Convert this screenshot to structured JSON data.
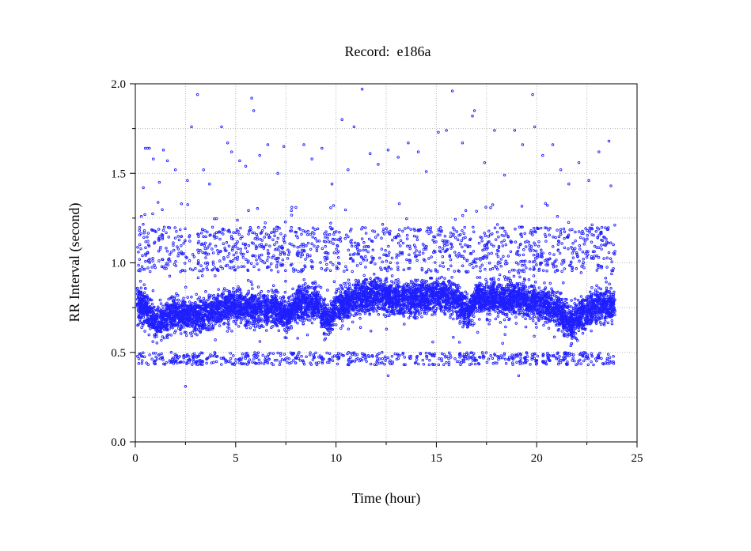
{
  "chart_data": {
    "type": "scatter",
    "title": "Record:  e186a",
    "xlabel": "Time (hour)",
    "ylabel": "RR Interval (second)",
    "xlim": [
      0,
      25
    ],
    "ylim": [
      0,
      2
    ],
    "xticks": [
      0,
      5,
      10,
      15,
      20,
      25
    ],
    "xtick_labels": [
      "0",
      "5",
      "10",
      "15",
      "20",
      "25"
    ],
    "yticks": [
      0,
      0.5,
      1,
      1.5,
      2
    ],
    "ytick_labels": [
      "0.0",
      "0.5",
      "1.0",
      "1.5",
      "2.0"
    ],
    "grid": true,
    "series": [
      {
        "color": "#1f1fff",
        "marker": "circle",
        "x_range": [
          0.1,
          23.9
        ],
        "baseline_profile": {
          "x": [
            0.1,
            0.5,
            1.0,
            2.0,
            3.0,
            4.0,
            5.0,
            6.0,
            7.0,
            7.6,
            8.0,
            9.0,
            9.6,
            10.0,
            11.0,
            12.0,
            13.0,
            14.0,
            15.0,
            16.0,
            16.6,
            17.0,
            18.0,
            19.0,
            20.0,
            21.0,
            21.7,
            22.0,
            23.0,
            23.9
          ],
          "y": [
            0.78,
            0.76,
            0.66,
            0.72,
            0.7,
            0.74,
            0.76,
            0.74,
            0.74,
            0.7,
            0.76,
            0.78,
            0.66,
            0.76,
            0.8,
            0.82,
            0.8,
            0.8,
            0.82,
            0.8,
            0.72,
            0.8,
            0.8,
            0.8,
            0.78,
            0.74,
            0.66,
            0.7,
            0.76,
            0.76
          ]
        },
        "band_spread": 0.09,
        "upper_cluster_y": [
          0.95,
          1.2
        ],
        "lower_cluster_y": [
          0.43,
          0.5
        ],
        "outliers": [
          {
            "x": 0.3,
            "y": 1.26
          },
          {
            "x": 0.4,
            "y": 1.42
          },
          {
            "x": 0.5,
            "y": 1.64
          },
          {
            "x": 0.6,
            "y": 1.64
          },
          {
            "x": 0.7,
            "y": 1.64
          },
          {
            "x": 0.9,
            "y": 1.58
          },
          {
            "x": 1.2,
            "y": 1.45
          },
          {
            "x": 1.4,
            "y": 1.63
          },
          {
            "x": 1.6,
            "y": 1.57
          },
          {
            "x": 2.0,
            "y": 1.52
          },
          {
            "x": 2.3,
            "y": 1.33
          },
          {
            "x": 2.6,
            "y": 1.46
          },
          {
            "x": 2.8,
            "y": 1.76
          },
          {
            "x": 3.1,
            "y": 1.94
          },
          {
            "x": 3.4,
            "y": 1.52
          },
          {
            "x": 3.7,
            "y": 1.44
          },
          {
            "x": 4.3,
            "y": 1.76
          },
          {
            "x": 4.6,
            "y": 1.67
          },
          {
            "x": 4.8,
            "y": 1.62
          },
          {
            "x": 5.2,
            "y": 1.57
          },
          {
            "x": 5.5,
            "y": 1.54
          },
          {
            "x": 5.8,
            "y": 1.92
          },
          {
            "x": 5.9,
            "y": 1.85
          },
          {
            "x": 6.2,
            "y": 1.6
          },
          {
            "x": 6.6,
            "y": 1.66
          },
          {
            "x": 7.1,
            "y": 1.5
          },
          {
            "x": 7.4,
            "y": 1.65
          },
          {
            "x": 7.8,
            "y": 1.31
          },
          {
            "x": 8.4,
            "y": 1.66
          },
          {
            "x": 8.8,
            "y": 1.58
          },
          {
            "x": 9.3,
            "y": 1.64
          },
          {
            "x": 9.8,
            "y": 1.44
          },
          {
            "x": 10.3,
            "y": 1.8
          },
          {
            "x": 10.6,
            "y": 1.52
          },
          {
            "x": 10.9,
            "y": 1.76
          },
          {
            "x": 11.3,
            "y": 1.97
          },
          {
            "x": 11.7,
            "y": 1.61
          },
          {
            "x": 12.1,
            "y": 1.55
          },
          {
            "x": 12.6,
            "y": 1.63
          },
          {
            "x": 13.1,
            "y": 1.59
          },
          {
            "x": 13.6,
            "y": 1.67
          },
          {
            "x": 14.1,
            "y": 1.62
          },
          {
            "x": 14.5,
            "y": 1.51
          },
          {
            "x": 15.1,
            "y": 1.73
          },
          {
            "x": 15.5,
            "y": 1.74
          },
          {
            "x": 15.8,
            "y": 1.96
          },
          {
            "x": 16.3,
            "y": 1.67
          },
          {
            "x": 16.8,
            "y": 1.82
          },
          {
            "x": 16.9,
            "y": 1.85
          },
          {
            "x": 17.4,
            "y": 1.56
          },
          {
            "x": 17.9,
            "y": 1.74
          },
          {
            "x": 18.4,
            "y": 1.49
          },
          {
            "x": 18.9,
            "y": 1.74
          },
          {
            "x": 19.3,
            "y": 1.66
          },
          {
            "x": 19.8,
            "y": 1.94
          },
          {
            "x": 19.9,
            "y": 1.76
          },
          {
            "x": 20.3,
            "y": 1.6
          },
          {
            "x": 20.8,
            "y": 1.66
          },
          {
            "x": 21.2,
            "y": 1.52
          },
          {
            "x": 21.6,
            "y": 1.44
          },
          {
            "x": 22.1,
            "y": 1.56
          },
          {
            "x": 22.6,
            "y": 1.46
          },
          {
            "x": 23.1,
            "y": 1.62
          },
          {
            "x": 23.6,
            "y": 1.68
          },
          {
            "x": 23.7,
            "y": 1.43
          },
          {
            "x": 2.5,
            "y": 0.31
          },
          {
            "x": 12.6,
            "y": 0.37
          },
          {
            "x": 19.1,
            "y": 0.37
          }
        ]
      }
    ]
  }
}
